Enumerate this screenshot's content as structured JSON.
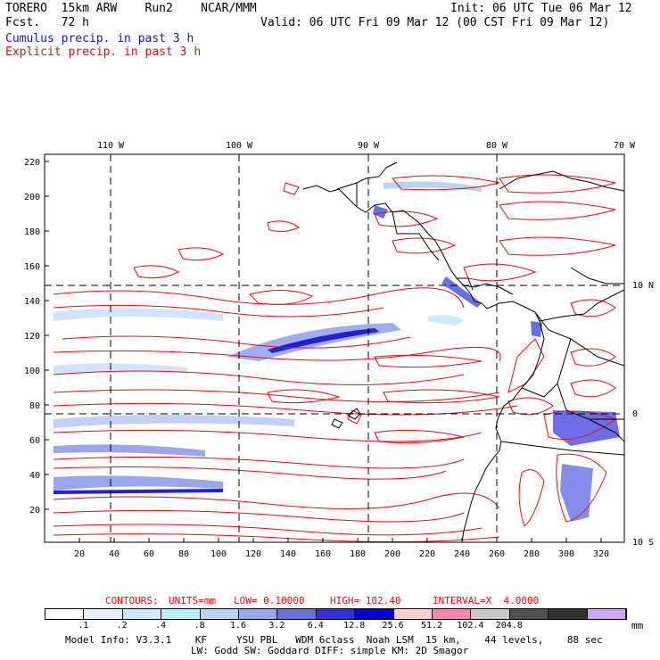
{
  "header": {
    "model": "TORERO  15km ARW    Run2    NCAR/MMM",
    "init": "Init: 06 UTC Tue 06 Mar 12",
    "fcst": "Fcst.   72 h",
    "valid": "Valid: 06 UTC Fri 09 Mar 12 (00 CST Fri 09 Mar 12)",
    "cumulus": "Cumulus precip. in past 3 h",
    "explicit": "Explicit precip. in past 3 h"
  },
  "map": {
    "lon_labels": [
      "110 W",
      "100 W",
      "90 W",
      "80 W",
      "70 W"
    ],
    "lat_labels": [
      "10 N",
      "0",
      "10 S"
    ],
    "y_ticks": [
      "220",
      "200",
      "180",
      "160",
      "140",
      "120",
      "100",
      "80",
      "60",
      "40",
      "20"
    ],
    "x_ticks": [
      "20",
      "40",
      "60",
      "80",
      "100",
      "120",
      "140",
      "160",
      "180",
      "200",
      "220",
      "240",
      "260",
      "280",
      "300",
      "320"
    ]
  },
  "contours_line": {
    "label": "CONTOURS:",
    "units": "UNITS=mm",
    "low": "LOW= 0.10000",
    "high": "HIGH= 102.40",
    "interval": "INTERVAL=X  4.0000"
  },
  "colorbar": {
    "colors": [
      "#ffffff",
      "#e6f2fb",
      "#cdeafc",
      "#b7eefb",
      "#b8d4f7",
      "#9aa6ee",
      "#6670e3",
      "#3030e0",
      "#0000d8",
      "#ffd0cf",
      "#f789b0",
      "#c8c8c8",
      "#505050",
      "#333333",
      "#d2a6f6"
    ],
    "labels": [
      ".1",
      ".2",
      ".4",
      ".8",
      "1.6",
      "3.2",
      "6.4",
      "12.8",
      "25.6",
      "51.2",
      "102.4",
      "204.8"
    ],
    "unit": "mm"
  },
  "footer": {
    "line1": "Model Info: V3.3.1    KF     YSU PBL   WDM 6class  Noah LSM  15 km,    44 levels,    88 sec",
    "line2": "LW: Godd SW: Goddard DIFF: simple KM: 2D Smagor"
  }
}
